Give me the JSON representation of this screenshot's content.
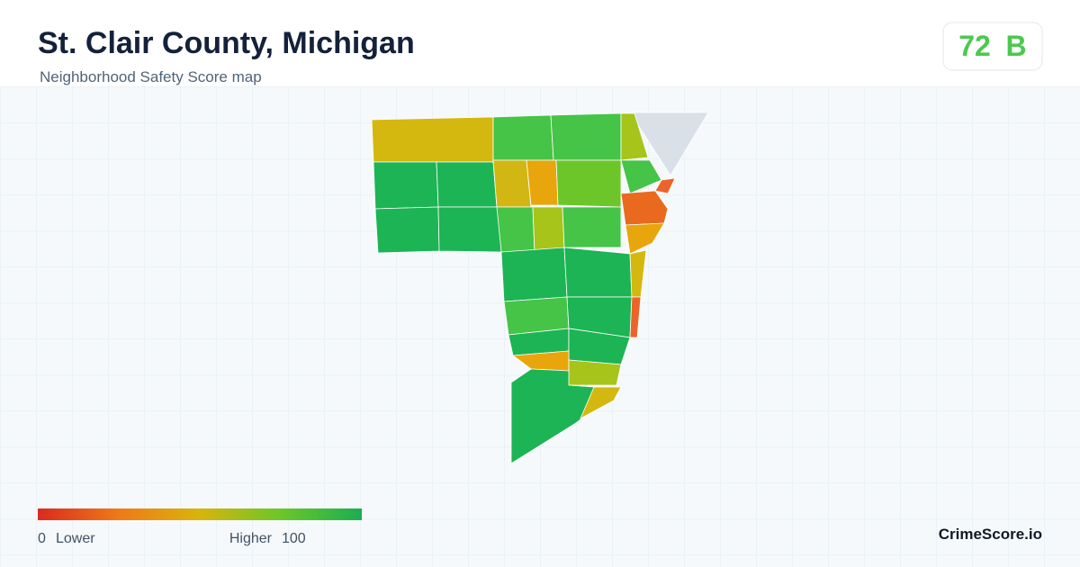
{
  "header": {
    "title": "St. Clair County, Michigan",
    "subtitle": "Neighborhood Safety Score map"
  },
  "score": {
    "value": 72,
    "grade": "B"
  },
  "legend": {
    "min": 0,
    "min_label": "Lower",
    "max_label": "Higher",
    "max": 100
  },
  "brand": "CrimeScore.io"
}
